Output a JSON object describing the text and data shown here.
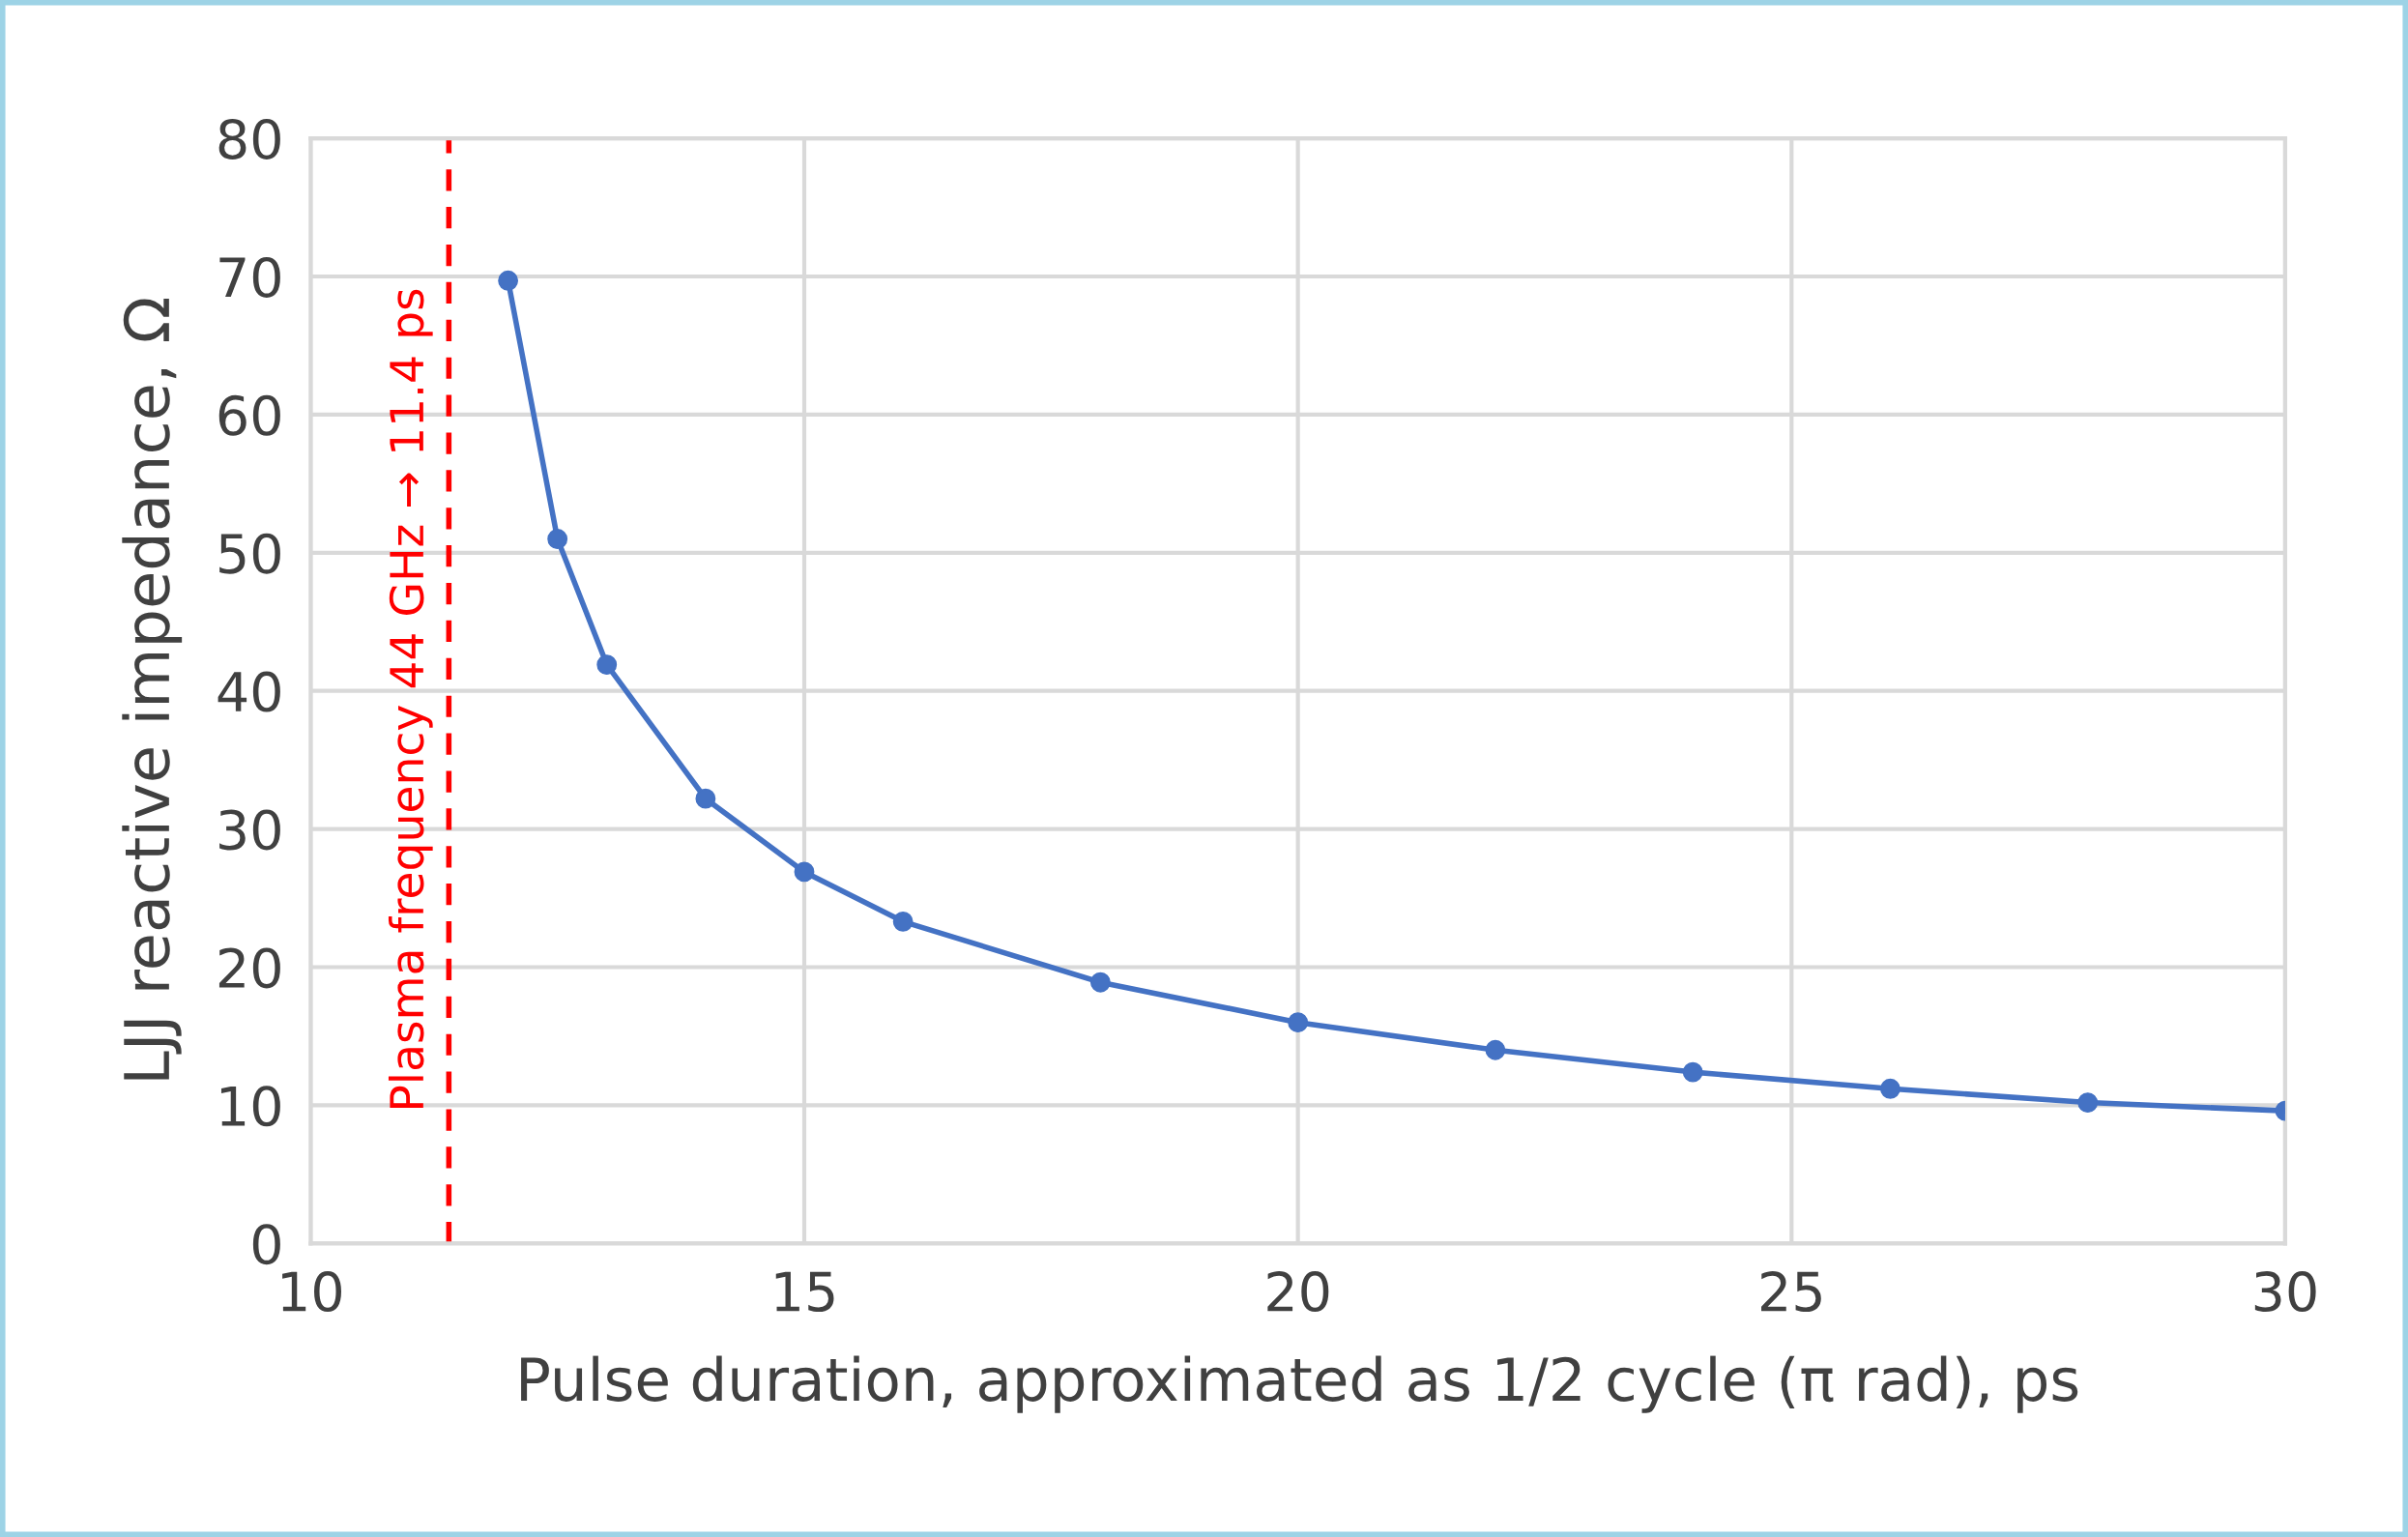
{
  "chart_data": {
    "type": "line",
    "xlabel": "Pulse duration, approximated as 1/2 cycle (π rad), ps",
    "ylabel": "LJJ reactive impedance, Ω",
    "x": [
      12,
      12.5,
      13,
      14,
      15,
      16,
      18,
      20,
      22,
      24,
      26,
      28,
      30
    ],
    "series": [
      {
        "color": "#4472c4",
        "values": [
          69.7,
          51.0,
          41.9,
          32.2,
          26.9,
          23.3,
          18.9,
          16.0,
          14.0,
          12.4,
          11.2,
          10.2,
          9.6
        ]
      }
    ],
    "xlim": [
      10,
      30
    ],
    "xticks": [
      10,
      15,
      20,
      25,
      30
    ],
    "ylim": [
      0,
      80
    ],
    "yticks": [
      0,
      10,
      20,
      30,
      40,
      50,
      60,
      70,
      80
    ],
    "grid": true,
    "marker": "circle",
    "line_style": "solid",
    "legend": false,
    "ref_lines": [
      {
        "axis": "x",
        "value": 11.4,
        "label": "Plasma frequency 44 GHz → 11.4 ps",
        "color": "#ff0000",
        "line_style": "dashed"
      }
    ]
  }
}
